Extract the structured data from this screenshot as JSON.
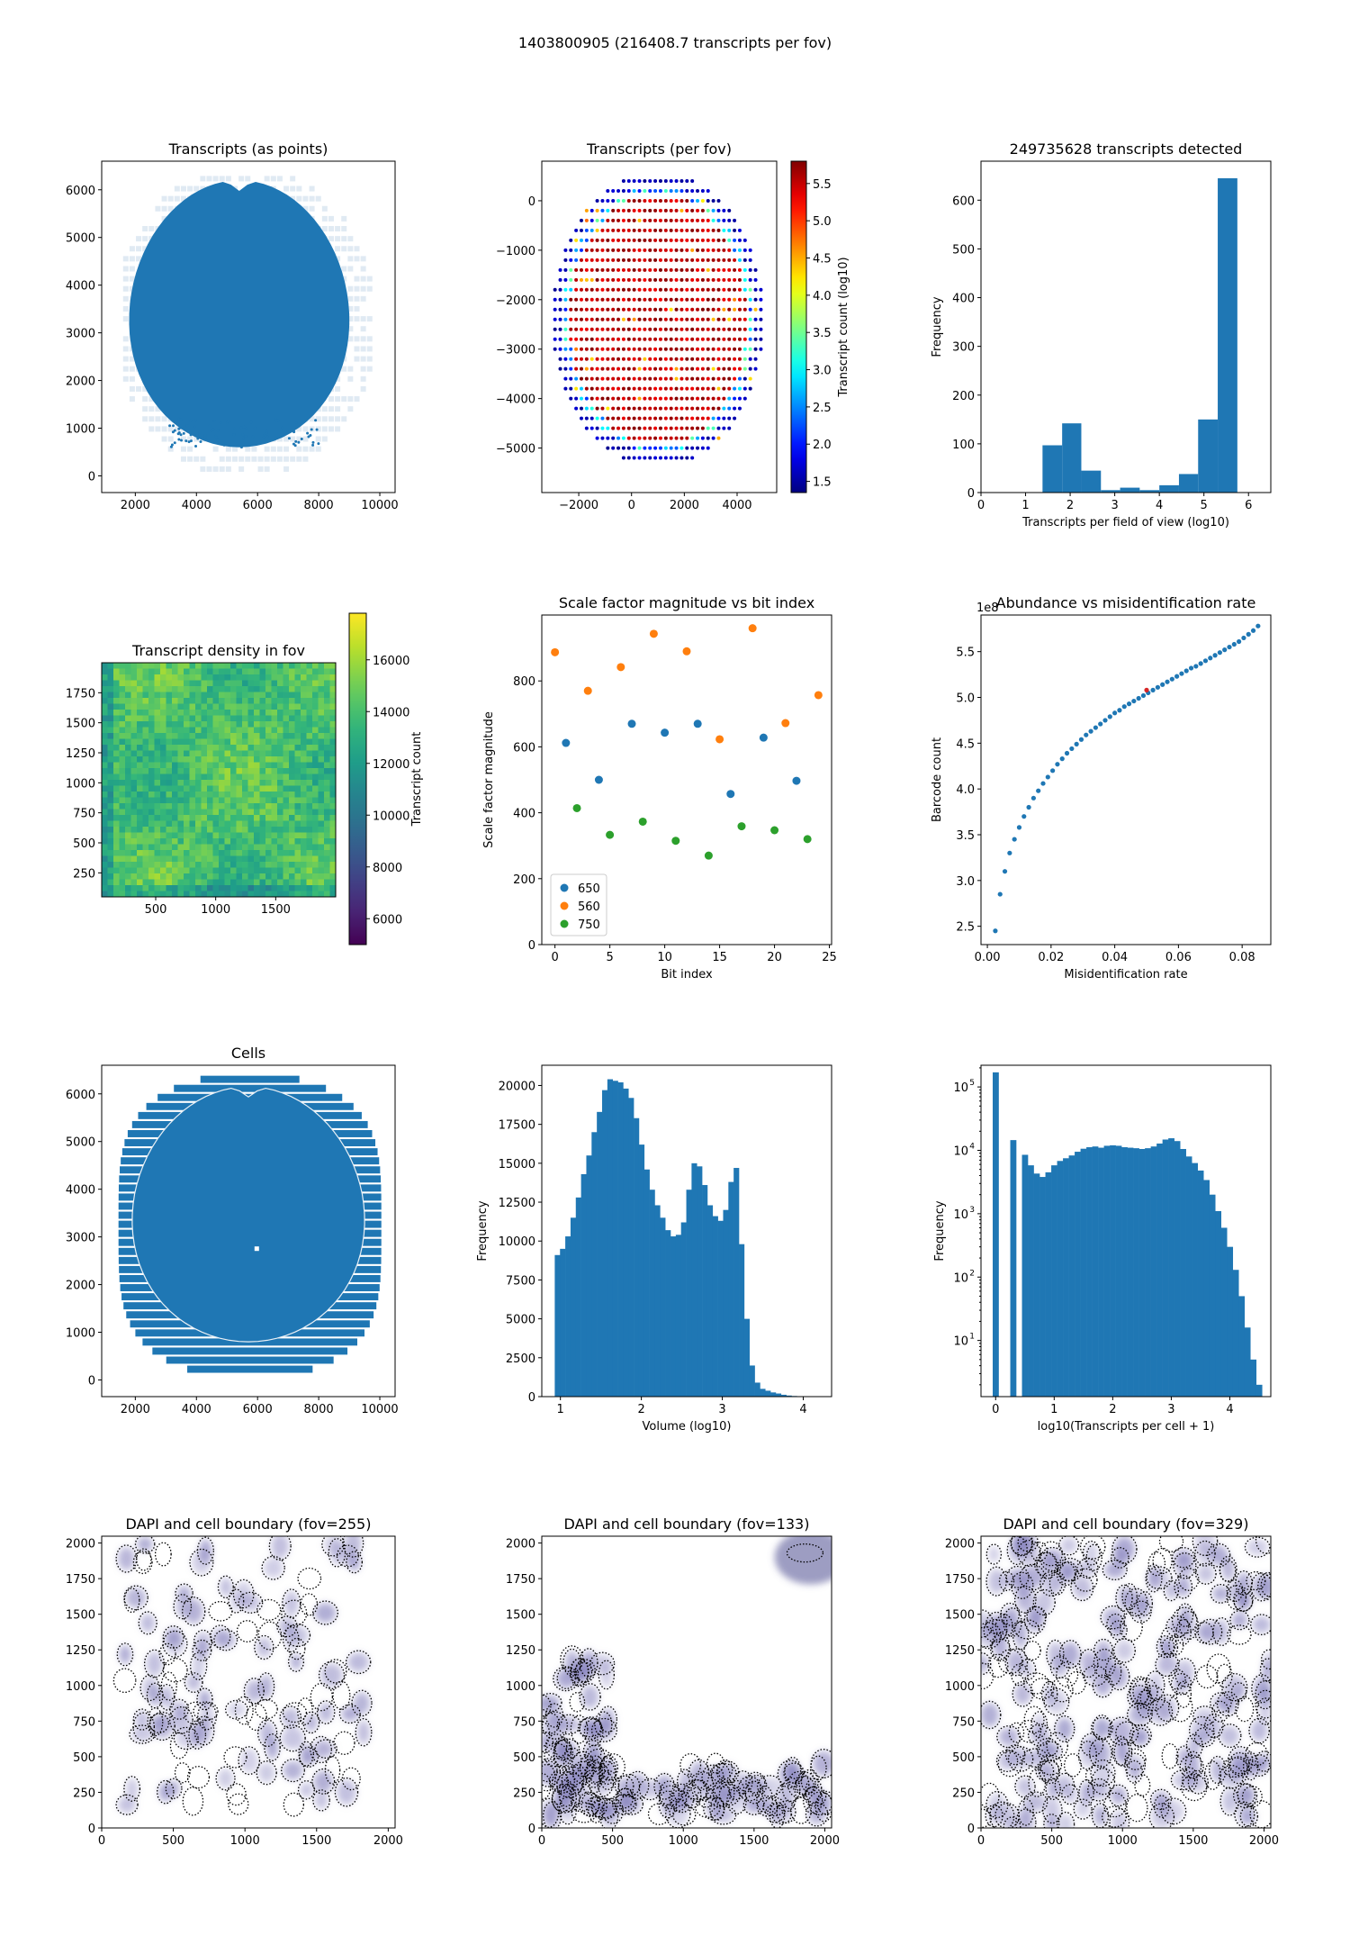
{
  "suptitle": "1403800905 (216408.7 transcripts per fov)",
  "colors": {
    "blue": "#1f77b4",
    "orange": "#ff7f0e",
    "green": "#2ca02c"
  },
  "chart_data": [
    {
      "id": "p1",
      "type": "scatter",
      "title": "Transcripts (as points)",
      "xlim": [
        900,
        10500
      ],
      "ylim": [
        -350,
        6600
      ],
      "xticks": [
        2000,
        4000,
        6000,
        8000,
        10000
      ],
      "yticks": [
        0,
        1000,
        2000,
        3000,
        4000,
        5000,
        6000
      ],
      "shape": "brain-section",
      "extent": {
        "x": [
          1800,
          9000
        ],
        "y": [
          600,
          6200
        ]
      }
    },
    {
      "id": "p2",
      "type": "scatter",
      "title": "Transcripts (per fov)",
      "xlim": [
        -3400,
        5500
      ],
      "ylim": [
        -5900,
        800
      ],
      "xticks": [
        -2000,
        0,
        2000,
        4000
      ],
      "yticks": [
        -5000,
        -4000,
        -3000,
        -2000,
        -1000,
        0
      ],
      "colorbar": {
        "label": "Transcript count (log10)",
        "colormap": "jet",
        "range": [
          1.35,
          5.8
        ],
        "ticks": [
          "1.5",
          "2.0",
          "2.5",
          "3.0",
          "3.5",
          "4.0",
          "4.5",
          "5.0",
          "5.5"
        ]
      },
      "grid": {
        "x": [
          -3100,
          5100
        ],
        "y": [
          -5400,
          600
        ],
        "step": 200
      }
    },
    {
      "id": "p3",
      "type": "bar",
      "title": "249735628 transcripts detected",
      "xlabel": "Transcripts per field of view (log10)",
      "ylabel": "Frequency",
      "xlim": [
        0,
        6.5
      ],
      "ylim": [
        0,
        680
      ],
      "xticks": [
        0,
        1,
        2,
        3,
        4,
        5,
        6
      ],
      "yticks": [
        0,
        100,
        200,
        300,
        400,
        500,
        600
      ],
      "bin_edges": [
        1.38,
        1.82,
        2.25,
        2.69,
        3.12,
        3.56,
        4.0,
        4.44,
        4.87,
        5.31,
        5.75
      ],
      "values": [
        97,
        142,
        45,
        5,
        10,
        5,
        15,
        38,
        150,
        645
      ]
    },
    {
      "id": "p4",
      "type": "heatmap",
      "title": "Transcript density in fov",
      "xlim": [
        50,
        2000
      ],
      "ylim": [
        50,
        2000
      ],
      "xticks": [
        500,
        1000,
        1500
      ],
      "yticks": [
        250,
        500,
        750,
        1000,
        1250,
        1500,
        1750
      ],
      "colorbar": {
        "label": "Transcript count",
        "colormap": "viridis",
        "range": [
          5000,
          17800
        ],
        "ticks": [
          "6000",
          "8000",
          "10000",
          "12000",
          "14000",
          "16000"
        ]
      }
    },
    {
      "id": "p5",
      "type": "scatter",
      "title": "Scale factor magnitude vs bit index",
      "xlabel": "Bit index",
      "ylabel": "Scale factor magnitude",
      "xlim": [
        -1.2,
        25.2
      ],
      "ylim": [
        0,
        1000
      ],
      "xticks": [
        0,
        5,
        10,
        15,
        20,
        25
      ],
      "yticks": [
        0,
        200,
        400,
        600,
        800
      ],
      "legend": {
        "position": "lower left"
      },
      "series": [
        {
          "name": "650",
          "color": "#1f77b4",
          "x": [
            1,
            4,
            7,
            10,
            13,
            16,
            19,
            22
          ],
          "y": [
            612,
            500,
            670,
            643,
            670,
            457,
            628,
            497
          ]
        },
        {
          "name": "560",
          "color": "#ff7f0e",
          "x": [
            0,
            3,
            6,
            9,
            12,
            15,
            18,
            21,
            24
          ],
          "y": [
            887,
            770,
            842,
            943,
            890,
            623,
            960,
            672,
            757
          ]
        },
        {
          "name": "750",
          "color": "#2ca02c",
          "x": [
            2,
            5,
            8,
            11,
            14,
            17,
            20,
            23
          ],
          "y": [
            414,
            333,
            373,
            315,
            270,
            359,
            347,
            320
          ]
        }
      ]
    },
    {
      "id": "p6",
      "type": "scatter",
      "title": "Abundance vs misidentification rate",
      "xlabel": "Misidentification rate",
      "ylabel": "Barcode count",
      "offset_label": "1e8",
      "xlim": [
        -0.002,
        0.089
      ],
      "ylim": [
        2.3,
        5.9
      ],
      "xticks": [
        0,
        0.02,
        0.04,
        0.06,
        0.08
      ],
      "xticklabels": [
        "0.00",
        "0.02",
        "0.04",
        "0.06",
        "0.08"
      ],
      "yticks": [
        2.5,
        3.0,
        3.5,
        4.0,
        4.5,
        5.0,
        5.5
      ],
      "yticklabels": [
        "2.5",
        "3.0",
        "3.5",
        "4.0",
        "4.5",
        "5.0",
        "5.5"
      ],
      "highlight": {
        "x": 0.05,
        "y": 5.08,
        "color": "#d62728"
      },
      "x": [
        0.0025,
        0.004,
        0.0055,
        0.007,
        0.0085,
        0.01,
        0.0115,
        0.013,
        0.0145,
        0.016,
        0.0175,
        0.019,
        0.0205,
        0.022,
        0.0235,
        0.025,
        0.0265,
        0.028,
        0.0295,
        0.031,
        0.0325,
        0.034,
        0.0355,
        0.037,
        0.0385,
        0.04,
        0.0415,
        0.043,
        0.0445,
        0.046,
        0.0475,
        0.049,
        0.0505,
        0.052,
        0.0535,
        0.055,
        0.0565,
        0.058,
        0.0595,
        0.061,
        0.0625,
        0.064,
        0.0655,
        0.067,
        0.0685,
        0.07,
        0.0715,
        0.073,
        0.0745,
        0.076,
        0.0775,
        0.079,
        0.0805,
        0.082,
        0.0835,
        0.085
      ],
      "y": [
        2.45,
        2.85,
        3.1,
        3.3,
        3.45,
        3.58,
        3.7,
        3.8,
        3.9,
        3.98,
        4.06,
        4.13,
        4.2,
        4.27,
        4.33,
        4.39,
        4.44,
        4.49,
        4.54,
        4.59,
        4.63,
        4.67,
        4.71,
        4.75,
        4.79,
        4.83,
        4.86,
        4.9,
        4.93,
        4.96,
        4.99,
        5.02,
        5.05,
        5.08,
        5.11,
        5.14,
        5.17,
        5.2,
        5.23,
        5.26,
        5.29,
        5.32,
        5.34,
        5.37,
        5.4,
        5.43,
        5.46,
        5.49,
        5.52,
        5.55,
        5.58,
        5.61,
        5.65,
        5.69,
        5.73,
        5.78
      ]
    },
    {
      "id": "p7",
      "type": "scatter",
      "title": "Cells",
      "xlim": [
        900,
        10500
      ],
      "ylim": [
        -350,
        6600
      ],
      "xticks": [
        2000,
        4000,
        6000,
        8000,
        10000
      ],
      "yticks": [
        0,
        1000,
        2000,
        3000,
        4000,
        5000,
        6000
      ],
      "shape": "brain-section",
      "extent": {
        "x": [
          1400,
          10100
        ],
        "y": [
          0,
          6300
        ]
      }
    },
    {
      "id": "p8",
      "type": "bar",
      "title": "",
      "xlabel": "Volume (log10)",
      "ylabel": "Frequency",
      "xlim": [
        0.77,
        4.35
      ],
      "ylim": [
        0,
        21300
      ],
      "xticks": [
        1,
        2,
        3,
        4
      ],
      "yticks": [
        0,
        2500,
        5000,
        7500,
        10000,
        12500,
        15000,
        17500,
        20000
      ],
      "bin_start": 0.93,
      "bin_width": 0.065,
      "values": [
        9100,
        9500,
        10300,
        11500,
        12800,
        14300,
        15500,
        17000,
        18300,
        19700,
        20400,
        20300,
        20200,
        19800,
        19200,
        17900,
        16200,
        14600,
        13300,
        12300,
        11500,
        10700,
        10300,
        10400,
        11200,
        13300,
        15000,
        14800,
        13600,
        12300,
        11600,
        11300,
        12000,
        13800,
        14700,
        9800,
        5000,
        2000,
        900,
        500,
        380,
        270,
        200,
        120,
        70,
        40,
        20,
        10,
        5
      ]
    },
    {
      "id": "p9",
      "type": "bar",
      "title": "",
      "xlabel": "log10(Transcripts per cell + 1)",
      "ylabel": "Frequency",
      "yscale": "log",
      "xlim": [
        -0.25,
        4.7
      ],
      "ylim": [
        1.3,
        220000
      ],
      "xticks": [
        0,
        1,
        2,
        3,
        4
      ],
      "yticks": [
        10,
        100,
        1000,
        10000,
        100000
      ],
      "yticklabels": [
        "10",
        "10",
        "10",
        "10",
        "10"
      ],
      "ytickexp": [
        "1",
        "2",
        "3",
        "4",
        "5"
      ],
      "bin_width": 0.1,
      "bars": [
        [
          -0.05,
          170000
        ],
        [
          0.25,
          14500
        ],
        [
          0.45,
          8500
        ],
        [
          0.55,
          5800
        ],
        [
          0.65,
          4300
        ],
        [
          0.75,
          3800
        ],
        [
          0.85,
          4500
        ],
        [
          0.95,
          5800
        ],
        [
          1.05,
          6800
        ],
        [
          1.15,
          7500
        ],
        [
          1.25,
          8300
        ],
        [
          1.35,
          9500
        ],
        [
          1.45,
          10600
        ],
        [
          1.55,
          11200
        ],
        [
          1.65,
          11500
        ],
        [
          1.75,
          11000
        ],
        [
          1.85,
          11800
        ],
        [
          1.95,
          12000
        ],
        [
          2.05,
          11800
        ],
        [
          2.15,
          11200
        ],
        [
          2.25,
          11000
        ],
        [
          2.35,
          10800
        ],
        [
          2.45,
          10500
        ],
        [
          2.55,
          10800
        ],
        [
          2.65,
          11500
        ],
        [
          2.75,
          12800
        ],
        [
          2.85,
          14800
        ],
        [
          2.95,
          15500
        ],
        [
          3.05,
          14000
        ],
        [
          3.15,
          10500
        ],
        [
          3.25,
          8000
        ],
        [
          3.35,
          6300
        ],
        [
          3.45,
          4800
        ],
        [
          3.55,
          3400
        ],
        [
          3.65,
          2000
        ],
        [
          3.75,
          1100
        ],
        [
          3.85,
          600
        ],
        [
          3.95,
          300
        ],
        [
          4.05,
          130
        ],
        [
          4.15,
          50
        ],
        [
          4.25,
          16
        ],
        [
          4.35,
          5
        ],
        [
          4.45,
          2
        ]
      ]
    },
    {
      "id": "p10",
      "type": "scatter",
      "title": "DAPI and cell boundary (fov=255)",
      "xlim": [
        0,
        2048
      ],
      "ylim": [
        0,
        2048
      ],
      "xticks": [
        0,
        500,
        1000,
        1500,
        2000
      ],
      "yticks": [
        0,
        250,
        500,
        750,
        1000,
        1250,
        1500,
        1750,
        2000
      ],
      "seed": 255,
      "cell_count": 120,
      "region": "scattered"
    },
    {
      "id": "p11",
      "type": "scatter",
      "title": "DAPI and cell boundary (fov=133)",
      "xlim": [
        0,
        2048
      ],
      "ylim": [
        0,
        2048
      ],
      "xticks": [
        0,
        500,
        1000,
        1500,
        2000
      ],
      "yticks": [
        0,
        250,
        500,
        750,
        1000,
        1250,
        1500,
        1750,
        2000
      ],
      "seed": 133,
      "cell_count": 150,
      "region": "bottom-band"
    },
    {
      "id": "p12",
      "type": "scatter",
      "title": "DAPI and cell boundary (fov=329)",
      "xlim": [
        0,
        2048
      ],
      "ylim": [
        0,
        2048
      ],
      "xticks": [
        0,
        500,
        1000,
        1500,
        2000
      ],
      "yticks": [
        0,
        250,
        500,
        750,
        1000,
        1250,
        1500,
        1750,
        2000
      ],
      "seed": 329,
      "cell_count": 260,
      "region": "dense"
    }
  ]
}
